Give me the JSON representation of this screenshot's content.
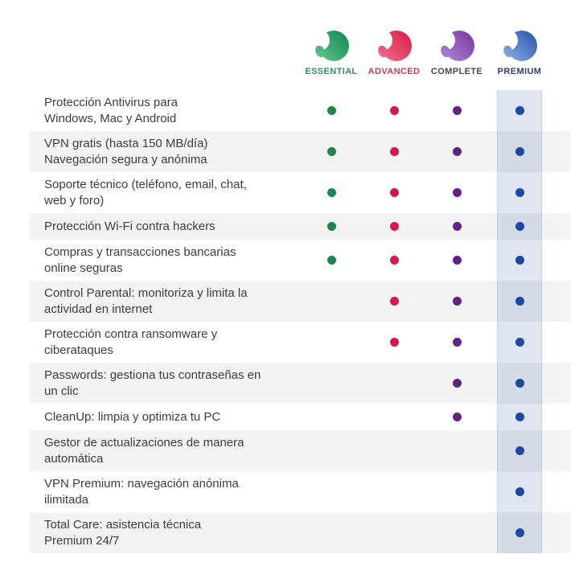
{
  "plans": [
    {
      "name": "ESSENTIAL",
      "label_color": "#2e8e70",
      "dot_color": "#17874f",
      "gradient_light": "#6cc898",
      "gradient_dark": "#108a4d"
    },
    {
      "name": "ADVANCED",
      "label_color": "#c33a5f",
      "dot_color": "#d6164c",
      "gradient_light": "#f0718d",
      "gradient_dark": "#d91f4c"
    },
    {
      "name": "COMPLETE",
      "label_color": "#474358",
      "dot_color": "#5e2385",
      "gradient_light": "#b187d8",
      "gradient_dark": "#7a3ba3"
    },
    {
      "name": "PREMIUM",
      "label_color": "#2f3f6d",
      "dot_color": "#1c48a5",
      "gradient_light": "#8fb2e6",
      "gradient_dark": "#2b57ad"
    }
  ],
  "icons": {
    "plan_logo": "panda-head-icon",
    "included_marker": "filled-dot"
  },
  "table": {
    "highlight_color": "#dfe6f1",
    "alt_row_color": "rgba(32,32,48,0.055)",
    "text_color": "#3d3d3d",
    "features": [
      {
        "text": "Protección Antivirus para\nWindows, Mac y Android",
        "included": [
          true,
          true,
          true,
          true
        ]
      },
      {
        "text": "VPN gratis (hasta 150 MB/día)\nNavegación segura y anónima",
        "included": [
          true,
          true,
          true,
          true
        ]
      },
      {
        "text": "Soporte técnico (teléfono, email, chat,\nweb y foro)",
        "included": [
          true,
          true,
          true,
          true
        ]
      },
      {
        "text": "Protección Wi-Fi contra hackers",
        "included": [
          true,
          true,
          true,
          true
        ]
      },
      {
        "text": "Compras y transacciones bancarias\nonline seguras",
        "included": [
          true,
          true,
          true,
          true
        ]
      },
      {
        "text": "Control Parental: monitoriza y limita la\nactividad en internet",
        "included": [
          false,
          true,
          true,
          true
        ]
      },
      {
        "text": "Protección contra ransomware y\nciberataques",
        "included": [
          false,
          true,
          true,
          true
        ]
      },
      {
        "text": "Passwords: gestiona tus contraseñas en\nun clic",
        "included": [
          false,
          false,
          true,
          true
        ]
      },
      {
        "text": "CleanUp: limpia y optimiza tu PC",
        "included": [
          false,
          false,
          true,
          true
        ]
      },
      {
        "text": "Gestor de actualizaciones de manera\nautomática",
        "included": [
          false,
          false,
          false,
          true
        ]
      },
      {
        "text": "VPN Premium: navegación anónima\nilimitada",
        "included": [
          false,
          false,
          false,
          true
        ]
      },
      {
        "text": "Total Care: asistencia técnica\nPremium 24/7",
        "included": [
          false,
          false,
          false,
          true
        ]
      }
    ]
  }
}
